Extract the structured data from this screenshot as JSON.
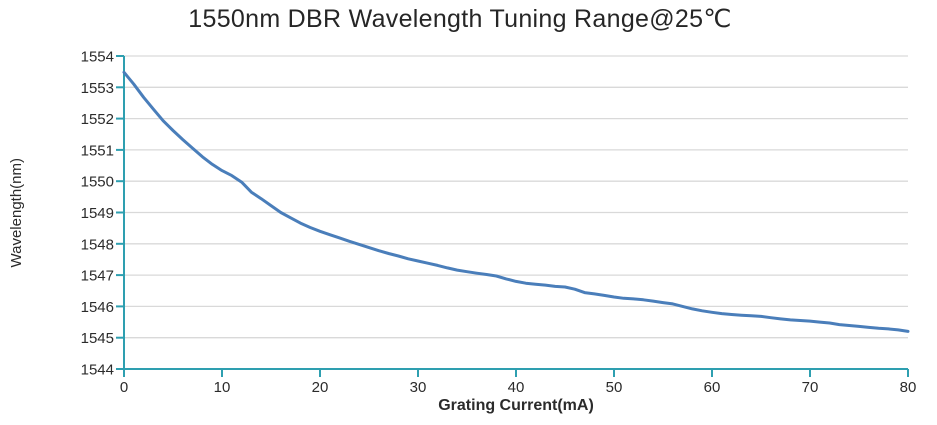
{
  "chart_data": {
    "type": "line",
    "title": "1550nm DBR Wavelength Tuning Range@25℃",
    "xlabel": "Grating Current(mA)",
    "ylabel": "Wavelength(nm)",
    "xlim": [
      0,
      80
    ],
    "ylim": [
      1544,
      1554
    ],
    "x_ticks": [
      0,
      10,
      20,
      30,
      40,
      50,
      60,
      70,
      80
    ],
    "y_ticks": [
      1544,
      1545,
      1546,
      1547,
      1548,
      1549,
      1550,
      1551,
      1552,
      1553,
      1554
    ],
    "grid": "horizontal-only",
    "legend": "none",
    "colors": {
      "line": "#4a7eba",
      "axis": "#2e9fb0",
      "gridline": "#d9d9d9",
      "tick_text": "#2b2b2b",
      "title_text": "#262626"
    },
    "series": [
      {
        "name": "wavelength",
        "x": [
          0,
          1,
          2,
          3,
          4,
          5,
          6,
          7,
          8,
          9,
          10,
          11,
          12,
          13,
          14,
          15,
          16,
          17,
          18,
          19,
          20,
          21,
          22,
          23,
          24,
          25,
          26,
          27,
          28,
          29,
          30,
          31,
          32,
          33,
          34,
          35,
          36,
          37,
          38,
          39,
          40,
          41,
          42,
          43,
          44,
          45,
          46,
          47,
          48,
          49,
          50,
          51,
          52,
          53,
          54,
          55,
          56,
          57,
          58,
          59,
          60,
          61,
          62,
          63,
          64,
          65,
          66,
          67,
          68,
          69,
          70,
          71,
          72,
          73,
          74,
          75,
          76,
          77,
          78,
          79,
          80
        ],
        "y": [
          1553.48,
          1553.1,
          1552.68,
          1552.3,
          1551.93,
          1551.62,
          1551.33,
          1551.05,
          1550.78,
          1550.54,
          1550.34,
          1550.18,
          1549.97,
          1549.65,
          1549.44,
          1549.22,
          1549.0,
          1548.83,
          1548.66,
          1548.52,
          1548.4,
          1548.29,
          1548.19,
          1548.08,
          1547.98,
          1547.88,
          1547.78,
          1547.69,
          1547.61,
          1547.52,
          1547.45,
          1547.38,
          1547.31,
          1547.23,
          1547.16,
          1547.11,
          1547.06,
          1547.02,
          1546.97,
          1546.88,
          1546.8,
          1546.74,
          1546.71,
          1546.68,
          1546.64,
          1546.62,
          1546.55,
          1546.44,
          1546.4,
          1546.35,
          1546.3,
          1546.26,
          1546.24,
          1546.21,
          1546.17,
          1546.12,
          1546.08,
          1546.0,
          1545.92,
          1545.86,
          1545.81,
          1545.77,
          1545.74,
          1545.72,
          1545.7,
          1545.68,
          1545.64,
          1545.6,
          1545.57,
          1545.55,
          1545.53,
          1545.5,
          1545.47,
          1545.42,
          1545.39,
          1545.36,
          1545.33,
          1545.3,
          1545.28,
          1545.25,
          1545.2
        ]
      }
    ]
  }
}
